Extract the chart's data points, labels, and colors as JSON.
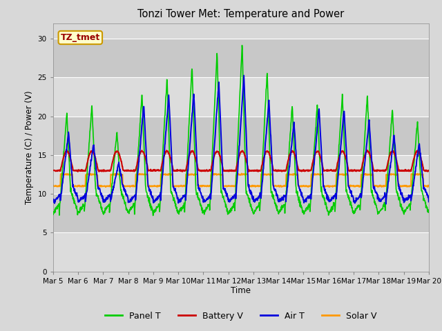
{
  "title": "Tonzi Tower Met: Temperature and Power",
  "ylabel": "Temperature (C) / Power (V)",
  "xlabel": "Time",
  "annotation_text": "TZ_tmet",
  "annotation_bg": "#ffffcc",
  "annotation_border": "#cc9900",
  "annotation_text_color": "#990000",
  "ylim": [
    0,
    32
  ],
  "yticks": [
    0,
    5,
    10,
    15,
    20,
    25,
    30
  ],
  "x_labels": [
    "Mar 5",
    "Mar 6",
    "Mar 7",
    "Mar 8",
    "Mar 9",
    "Mar 10",
    "Mar 11",
    "Mar 12",
    "Mar 13",
    "Mar 14",
    "Mar 15",
    "Mar 16",
    "Mar 17",
    "Mar 18",
    "Mar 19",
    "Mar 20"
  ],
  "bg_color": "#d8d8d8",
  "plot_bg_light": "#dcdcdc",
  "plot_bg_dark": "#c8c8c8",
  "grid_color": "#ffffff",
  "panel_t_color": "#00cc00",
  "battery_v_color": "#cc0000",
  "air_t_color": "#0000dd",
  "solar_v_color": "#ff9900",
  "line_width": 1.2,
  "figsize": [
    6.4,
    4.8
  ],
  "dpi": 100,
  "n_days": 15,
  "pts_per_day": 96,
  "panel_t_peaks": [
    20.5,
    21.5,
    18.0,
    23.0,
    25.0,
    26.5,
    28.2,
    29.3,
    25.8,
    21.5,
    21.5,
    22.8,
    22.8,
    21.0,
    19.5
  ],
  "air_t_peaks": [
    18.0,
    16.5,
    14.0,
    21.5,
    22.8,
    23.0,
    24.5,
    25.3,
    22.0,
    19.2,
    21.0,
    20.8,
    19.5,
    17.5,
    16.5
  ],
  "panel_t_base": 7.5,
  "air_t_base": 9.0,
  "battery_v_base": 13.0,
  "battery_v_peak_add": 2.5,
  "solar_v_base": 11.0,
  "solar_v_peak_add": 1.5
}
